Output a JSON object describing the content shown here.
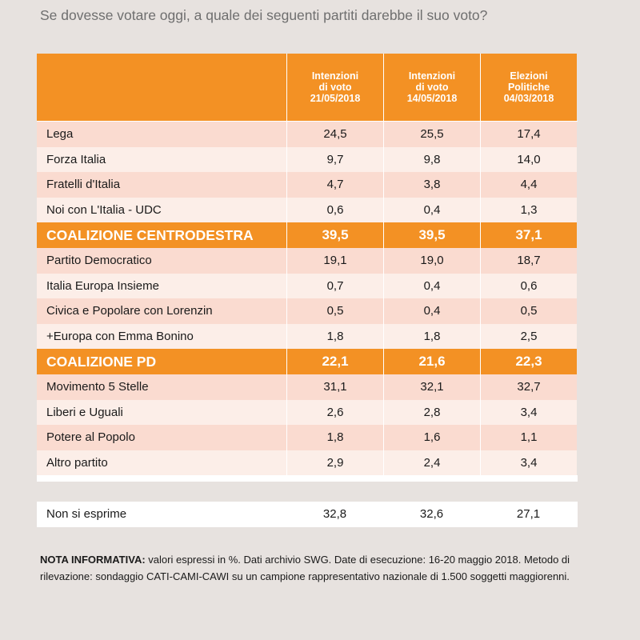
{
  "question": "Se dovesse votare oggi, a quale dei seguenti partiti darebbe il suo voto?",
  "chart_data": {
    "type": "table",
    "columns": [
      "Intenzioni\ndi voto\n21/05/2018",
      "Intenzioni\ndi voto\n14/05/2018",
      "Elezioni\nPolitiche\n04/03/2018"
    ],
    "rows": [
      {
        "label": "Lega",
        "values": [
          "24,5",
          "25,5",
          "17,4"
        ],
        "kind": "party"
      },
      {
        "label": "Forza Italia",
        "values": [
          "9,7",
          "9,8",
          "14,0"
        ],
        "kind": "party"
      },
      {
        "label": "Fratelli d'Italia",
        "values": [
          "4,7",
          "3,8",
          "4,4"
        ],
        "kind": "party"
      },
      {
        "label": "Noi con L'Italia - UDC",
        "values": [
          "0,6",
          "0,4",
          "1,3"
        ],
        "kind": "party"
      },
      {
        "label": "COALIZIONE CENTRODESTRA",
        "values": [
          "39,5",
          "39,5",
          "37,1"
        ],
        "kind": "coalition"
      },
      {
        "label": "Partito Democratico",
        "values": [
          "19,1",
          "19,0",
          "18,7"
        ],
        "kind": "party"
      },
      {
        "label": "Italia Europa Insieme",
        "values": [
          "0,7",
          "0,4",
          "0,6"
        ],
        "kind": "party"
      },
      {
        "label": "Civica e Popolare con Lorenzin",
        "values": [
          "0,5",
          "0,4",
          "0,5"
        ],
        "kind": "party"
      },
      {
        "label": "+Europa con Emma Bonino",
        "values": [
          "1,8",
          "1,8",
          "2,5"
        ],
        "kind": "party"
      },
      {
        "label": "COALIZIONE PD",
        "values": [
          "22,1",
          "21,6",
          "22,3"
        ],
        "kind": "coalition"
      },
      {
        "label": "Movimento 5 Stelle",
        "values": [
          "31,1",
          "32,1",
          "32,7"
        ],
        "kind": "party"
      },
      {
        "label": "Liberi e Uguali",
        "values": [
          "2,6",
          "2,8",
          "3,4"
        ],
        "kind": "party"
      },
      {
        "label": "Potere al Popolo",
        "values": [
          "1,8",
          "1,6",
          "1,1"
        ],
        "kind": "party"
      },
      {
        "label": "Altro partito",
        "values": [
          "2,9",
          "2,4",
          "3,4"
        ],
        "kind": "party"
      }
    ],
    "non_si_esprime": {
      "label": "Non si esprime",
      "values": [
        "32,8",
        "32,6",
        "27,1"
      ]
    }
  },
  "note": {
    "title": "NOTA INFORMATIVA:",
    "text": " valori espressi in %. Dati archivio SWG. Date di esecuzione: 16-20 maggio 2018. Metodo di rilevazione: sondaggio CATI-CAMI-CAWI su un campione rappresentativo nazionale di 1.500 soggetti maggiorenni."
  },
  "colors": {
    "accent": "#f39124",
    "row_odd": "#fadbd0",
    "row_even": "#fceee8",
    "background": "#e7e2df"
  }
}
